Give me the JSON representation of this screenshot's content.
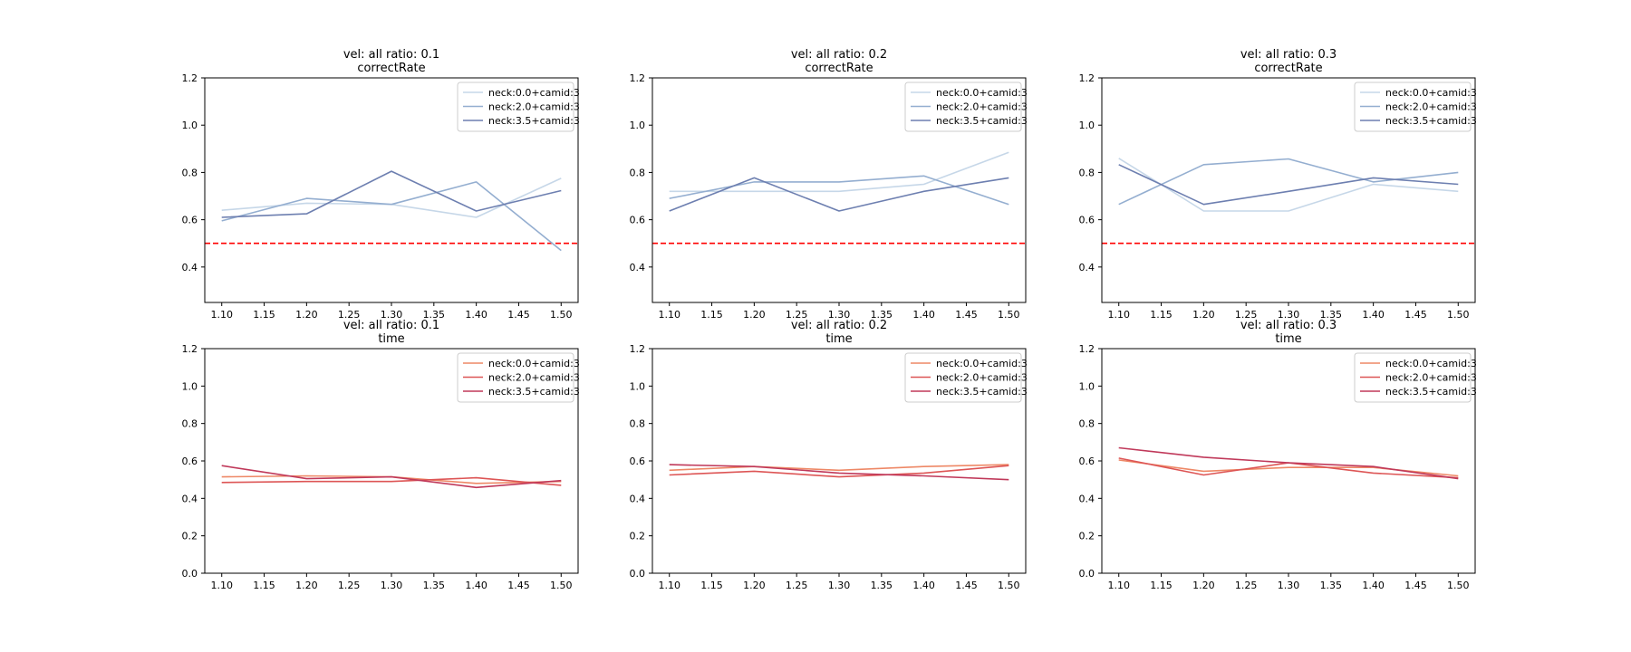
{
  "chart_data": [
    {
      "type": "line",
      "title_line1": "vel: all  ratio: 0.1",
      "title_line2": "correctRate",
      "x": [
        1.1,
        1.2,
        1.3,
        1.4,
        1.5
      ],
      "xlim": [
        1.08,
        1.52
      ],
      "ylim": [
        0.25,
        1.2
      ],
      "xticks": [
        "1.10",
        "1.15",
        "1.20",
        "1.25",
        "1.30",
        "1.35",
        "1.40",
        "1.45",
        "1.50"
      ],
      "yticks": [
        "0.4",
        "0.6",
        "0.8",
        "1.0",
        "1.2"
      ],
      "hline": {
        "value": 0.5,
        "color": "#ff0000",
        "style": "dashed"
      },
      "legend_position": "upper-right",
      "series": [
        {
          "name": "neck:0.0+camid:3",
          "color": "#c6d7e8",
          "values": [
            0.64,
            0.67,
            0.665,
            0.61,
            0.775
          ]
        },
        {
          "name": "neck:2.0+camid:3",
          "color": "#94aed0",
          "values": [
            0.595,
            0.69,
            0.665,
            0.76,
            0.47
          ]
        },
        {
          "name": "neck:3.5+camid:3",
          "color": "#6d7fb0",
          "values": [
            0.61,
            0.625,
            0.805,
            0.637,
            0.723
          ]
        }
      ]
    },
    {
      "type": "line",
      "title_line1": "vel: all  ratio: 0.2",
      "title_line2": "correctRate",
      "x": [
        1.1,
        1.2,
        1.3,
        1.4,
        1.5
      ],
      "xlim": [
        1.08,
        1.52
      ],
      "ylim": [
        0.25,
        1.2
      ],
      "xticks": [
        "1.10",
        "1.15",
        "1.20",
        "1.25",
        "1.30",
        "1.35",
        "1.40",
        "1.45",
        "1.50"
      ],
      "yticks": [
        "0.4",
        "0.6",
        "0.8",
        "1.0",
        "1.2"
      ],
      "hline": {
        "value": 0.5,
        "color": "#ff0000",
        "style": "dashed"
      },
      "legend_position": "upper-right",
      "series": [
        {
          "name": "neck:0.0+camid:3",
          "color": "#c6d7e8",
          "values": [
            0.72,
            0.72,
            0.72,
            0.75,
            0.885
          ]
        },
        {
          "name": "neck:2.0+camid:3",
          "color": "#94aed0",
          "values": [
            0.69,
            0.76,
            0.76,
            0.785,
            0.665
          ]
        },
        {
          "name": "neck:3.5+camid:3",
          "color": "#6d7fb0",
          "values": [
            0.637,
            0.777,
            0.637,
            0.72,
            0.777
          ]
        }
      ]
    },
    {
      "type": "line",
      "title_line1": "vel: all  ratio: 0.3",
      "title_line2": "correctRate",
      "x": [
        1.1,
        1.2,
        1.3,
        1.4,
        1.5
      ],
      "xlim": [
        1.08,
        1.52
      ],
      "ylim": [
        0.25,
        1.2
      ],
      "xticks": [
        "1.10",
        "1.15",
        "1.20",
        "1.25",
        "1.30",
        "1.35",
        "1.40",
        "1.45",
        "1.50"
      ],
      "yticks": [
        "0.4",
        "0.6",
        "0.8",
        "1.0",
        "1.2"
      ],
      "hline": {
        "value": 0.5,
        "color": "#ff0000",
        "style": "dashed"
      },
      "legend_position": "upper-right",
      "series": [
        {
          "name": "neck:0.0+camid:3",
          "color": "#c6d7e8",
          "values": [
            0.86,
            0.637,
            0.637,
            0.75,
            0.72
          ]
        },
        {
          "name": "neck:2.0+camid:3",
          "color": "#94aed0",
          "values": [
            0.665,
            0.833,
            0.857,
            0.76,
            0.8
          ]
        },
        {
          "name": "neck:3.5+camid:3",
          "color": "#6d7fb0",
          "values": [
            0.833,
            0.665,
            0.72,
            0.777,
            0.75
          ]
        }
      ]
    },
    {
      "type": "line",
      "title_line1": "vel: all  ratio: 0.1",
      "title_line2": "time",
      "x": [
        1.1,
        1.2,
        1.3,
        1.4,
        1.5
      ],
      "xlim": [
        1.08,
        1.52
      ],
      "ylim": [
        0.0,
        1.2
      ],
      "xticks": [
        "1.10",
        "1.15",
        "1.20",
        "1.25",
        "1.30",
        "1.35",
        "1.40",
        "1.45",
        "1.50"
      ],
      "yticks": [
        "0.0",
        "0.2",
        "0.4",
        "0.6",
        "0.8",
        "1.0",
        "1.2"
      ],
      "legend_position": "upper-right",
      "series": [
        {
          "name": "neck:0.0+camid:3",
          "color": "#ee8866",
          "values": [
            0.515,
            0.52,
            0.515,
            0.48,
            0.49
          ]
        },
        {
          "name": "neck:2.0+camid:3",
          "color": "#dd5555",
          "values": [
            0.485,
            0.49,
            0.49,
            0.51,
            0.47
          ]
        },
        {
          "name": "neck:3.5+camid:3",
          "color": "#c0395a",
          "values": [
            0.575,
            0.505,
            0.515,
            0.458,
            0.495
          ]
        }
      ]
    },
    {
      "type": "line",
      "title_line1": "vel: all  ratio: 0.2",
      "title_line2": "time",
      "x": [
        1.1,
        1.2,
        1.3,
        1.4,
        1.5
      ],
      "xlim": [
        1.08,
        1.52
      ],
      "ylim": [
        0.0,
        1.2
      ],
      "xticks": [
        "1.10",
        "1.15",
        "1.20",
        "1.25",
        "1.30",
        "1.35",
        "1.40",
        "1.45",
        "1.50"
      ],
      "yticks": [
        "0.0",
        "0.2",
        "0.4",
        "0.6",
        "0.8",
        "1.0",
        "1.2"
      ],
      "legend_position": "upper-right",
      "series": [
        {
          "name": "neck:0.0+camid:3",
          "color": "#ee8866",
          "values": [
            0.55,
            0.57,
            0.55,
            0.57,
            0.58
          ]
        },
        {
          "name": "neck:2.0+camid:3",
          "color": "#dd5555",
          "values": [
            0.525,
            0.545,
            0.515,
            0.535,
            0.575
          ]
        },
        {
          "name": "neck:3.5+camid:3",
          "color": "#c0395a",
          "values": [
            0.58,
            0.57,
            0.535,
            0.52,
            0.5
          ]
        }
      ]
    },
    {
      "type": "line",
      "title_line1": "vel: all  ratio: 0.3",
      "title_line2": "time",
      "x": [
        1.1,
        1.2,
        1.3,
        1.4,
        1.5
      ],
      "xlim": [
        1.08,
        1.52
      ],
      "ylim": [
        0.0,
        1.2
      ],
      "xticks": [
        "1.10",
        "1.15",
        "1.20",
        "1.25",
        "1.30",
        "1.35",
        "1.40",
        "1.45",
        "1.50"
      ],
      "yticks": [
        "0.0",
        "0.2",
        "0.4",
        "0.6",
        "0.8",
        "1.0",
        "1.2"
      ],
      "legend_position": "upper-right",
      "series": [
        {
          "name": "neck:0.0+camid:3",
          "color": "#ee8866",
          "values": [
            0.605,
            0.545,
            0.565,
            0.565,
            0.52
          ]
        },
        {
          "name": "neck:2.0+camid:3",
          "color": "#dd5555",
          "values": [
            0.615,
            0.525,
            0.59,
            0.535,
            0.51
          ]
        },
        {
          "name": "neck:3.5+camid:3",
          "color": "#c0395a",
          "values": [
            0.67,
            0.62,
            0.59,
            0.57,
            0.505
          ]
        }
      ]
    }
  ]
}
